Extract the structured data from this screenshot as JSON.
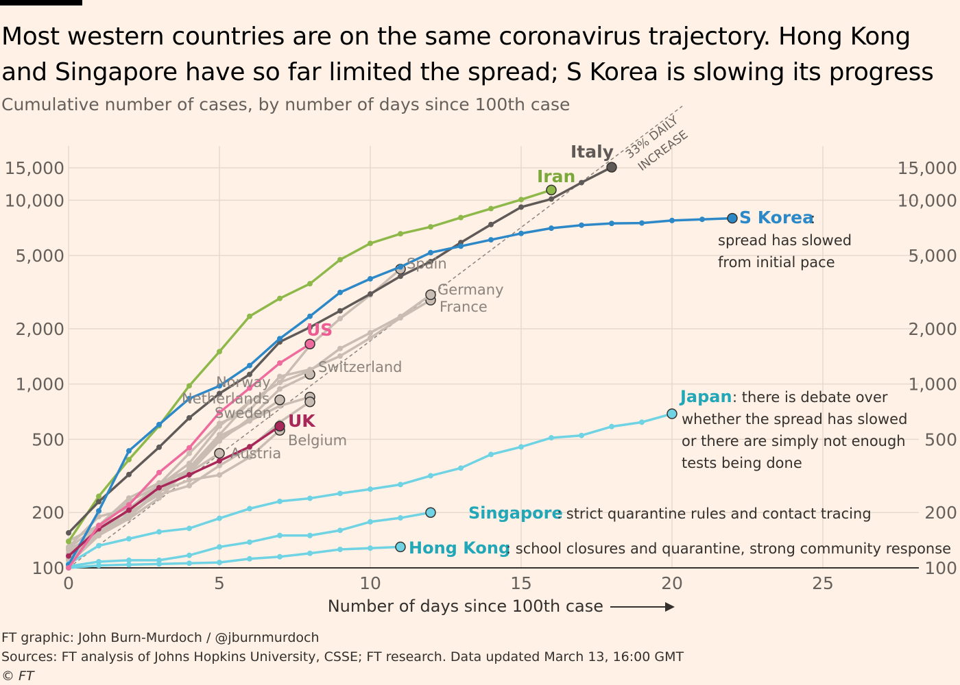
{
  "title": "Most western countries are on the same coronavirus trajectory. Hong Kong and Singapore have so far limited the spread; S Korea is slowing its progress",
  "subtitle": "Cumulative number of cases, by number of days since 100th case",
  "footer": {
    "credit": "FT graphic: John Burn-Murdoch / @jburnmurdoch",
    "sources": "Sources: FT analysis of Johns Hopkins University, CSSE; FT research. Data updated March 13, 16:00 GMT",
    "copyright": "© FT"
  },
  "colors": {
    "background": "#fff1e5",
    "grid": "#e6d9ce",
    "axis": "#33302e",
    "western_gray": "#c8bcb3",
    "italy": "#5f5a57",
    "iran": "#8fb84b",
    "skorea": "#2d88c8",
    "us": "#ee6b9e",
    "uk": "#a8285a",
    "asia_cyan": "#6fd3e4",
    "label_cyan": "#21a7b8",
    "annotation": "#8a837e"
  },
  "chart_data": {
    "type": "line",
    "xlabel": "Number of days since 100th case",
    "xlim": [
      0,
      28
    ],
    "ylim": [
      100,
      15000
    ],
    "yscale": "log",
    "x_ticks": [
      0,
      5,
      10,
      15,
      20,
      25
    ],
    "y_ticks": [
      {
        "value": 100,
        "label": "100"
      },
      {
        "value": 200,
        "label": "200"
      },
      {
        "value": 500,
        "label": "500"
      },
      {
        "value": 1000,
        "label": "1,000"
      },
      {
        "value": 2000,
        "label": "2,000"
      },
      {
        "value": 5000,
        "label": "5,000"
      },
      {
        "value": 10000,
        "label": "10,000"
      },
      {
        "value": 15000,
        "label": "15,000"
      }
    ],
    "grid": true,
    "reference_line": {
      "label_line1": "33% DAILY",
      "label_line2": "INCREASE",
      "start": 100,
      "growth": 1.33
    },
    "series": [
      {
        "name": "Norway",
        "label": "Norway",
        "group": "gray",
        "y": [
          112,
          158,
          206,
          275,
          345,
          500,
          630,
          760,
          850
        ]
      },
      {
        "name": "Netherlands",
        "label": "Netherlands",
        "group": "gray",
        "y": [
          128,
          170,
          240,
          290,
          340,
          520,
          630,
          820
        ]
      },
      {
        "name": "Sweden",
        "label": "Sweden",
        "group": "gray",
        "y": [
          140,
          170,
          200,
          250,
          280,
          360,
          450,
          620,
          800
        ]
      },
      {
        "name": "Belgium",
        "label": "Belgium",
        "group": "gray",
        "y": [
          105,
          150,
          190,
          260,
          300,
          320,
          400,
          560
        ]
      },
      {
        "name": "Austria",
        "label": "Austria",
        "group": "gray",
        "y": [
          125,
          155,
          195,
          260,
          330,
          420
        ]
      },
      {
        "name": "Switzerland",
        "label": "Switzerland",
        "group": "gray",
        "y": [
          110,
          150,
          210,
          260,
          330,
          490,
          650,
          940,
          1130
        ]
      },
      {
        "name": "France",
        "label": "France",
        "group": "gray",
        "y": [
          130,
          190,
          210,
          285,
          420,
          610,
          720,
          1100,
          1200,
          1420,
          1780,
          2290,
          2860
        ]
      },
      {
        "name": "Germany",
        "label": "Germany",
        "group": "gray",
        "y": [
          117,
          150,
          185,
          240,
          350,
          530,
          800,
          1020,
          1180,
          1560,
          1900,
          2330,
          3060
        ]
      },
      {
        "name": "Spain",
        "label": "Spain",
        "group": "gray",
        "y": [
          120,
          165,
          230,
          280,
          370,
          590,
          800,
          1020,
          1620,
          2270,
          3050,
          4220
        ]
      },
      {
        "name": "Italy",
        "label": "Italy",
        "group": "italy",
        "y": [
          155,
          229,
          322,
          453,
          655,
          888,
          1128,
          1694,
          2036,
          2502,
          3089,
          3858,
          4636,
          5883,
          7375,
          9172,
          10149,
          12462,
          15113
        ]
      },
      {
        "name": "Iran",
        "label": "Iran",
        "group": "iran",
        "y": [
          139,
          245,
          388,
          593,
          978,
          1501,
          2336,
          2922,
          3513,
          4747,
          5823,
          6566,
          7161,
          8042,
          9000,
          10075,
          11364
        ]
      },
      {
        "name": "S Korea",
        "label": "S Korea",
        "group": "skorea",
        "y": [
          104,
          204,
          433,
          602,
          833,
          977,
          1261,
          1766,
          2337,
          3150,
          3736,
          4335,
          5186,
          5621,
          6088,
          6593,
          7041,
          7314,
          7478,
          7513,
          7755,
          7869,
          7979
        ]
      },
      {
        "name": "US",
        "label": "US",
        "group": "us",
        "y": [
          100,
          170,
          220,
          330,
          450,
          700,
          950,
          1300,
          1650
        ]
      },
      {
        "name": "UK",
        "label": "UK",
        "group": "uk",
        "y": [
          116,
          163,
          206,
          273,
          321,
          382,
          456,
          590
        ]
      },
      {
        "name": "Japan",
        "label": "Japan",
        "group": "cyan",
        "y": [
          105,
          132,
          144,
          157,
          164,
          186,
          210,
          230,
          239,
          254,
          268,
          284,
          317,
          349,
          414,
          455,
          510,
          525,
          587,
          620,
          689
        ]
      },
      {
        "name": "Singapore",
        "label": "Singapore",
        "group": "cyan",
        "y": [
          102,
          108,
          110,
          110,
          117,
          130,
          138,
          150,
          150,
          160,
          178,
          187,
          200
        ]
      },
      {
        "name": "Hong Kong",
        "label": "Hong Kong",
        "group": "cyan",
        "y": [
          100,
          103,
          104,
          105,
          106,
          107,
          112,
          115,
          120,
          126,
          128,
          130
        ]
      }
    ],
    "annotations": {
      "skorea_line1": ":",
      "skorea_line2": "spread has slowed",
      "skorea_line3": "from initial pace",
      "japan_line1": ": there is debate over",
      "japan_line2": "whether the spread has slowed",
      "japan_line3": "or there are simply not enough",
      "japan_line4": "tests being done",
      "singapore": ": strict quarantine rules and contact tracing",
      "hongkong": ": school closures and quarantine, strong community response"
    }
  }
}
